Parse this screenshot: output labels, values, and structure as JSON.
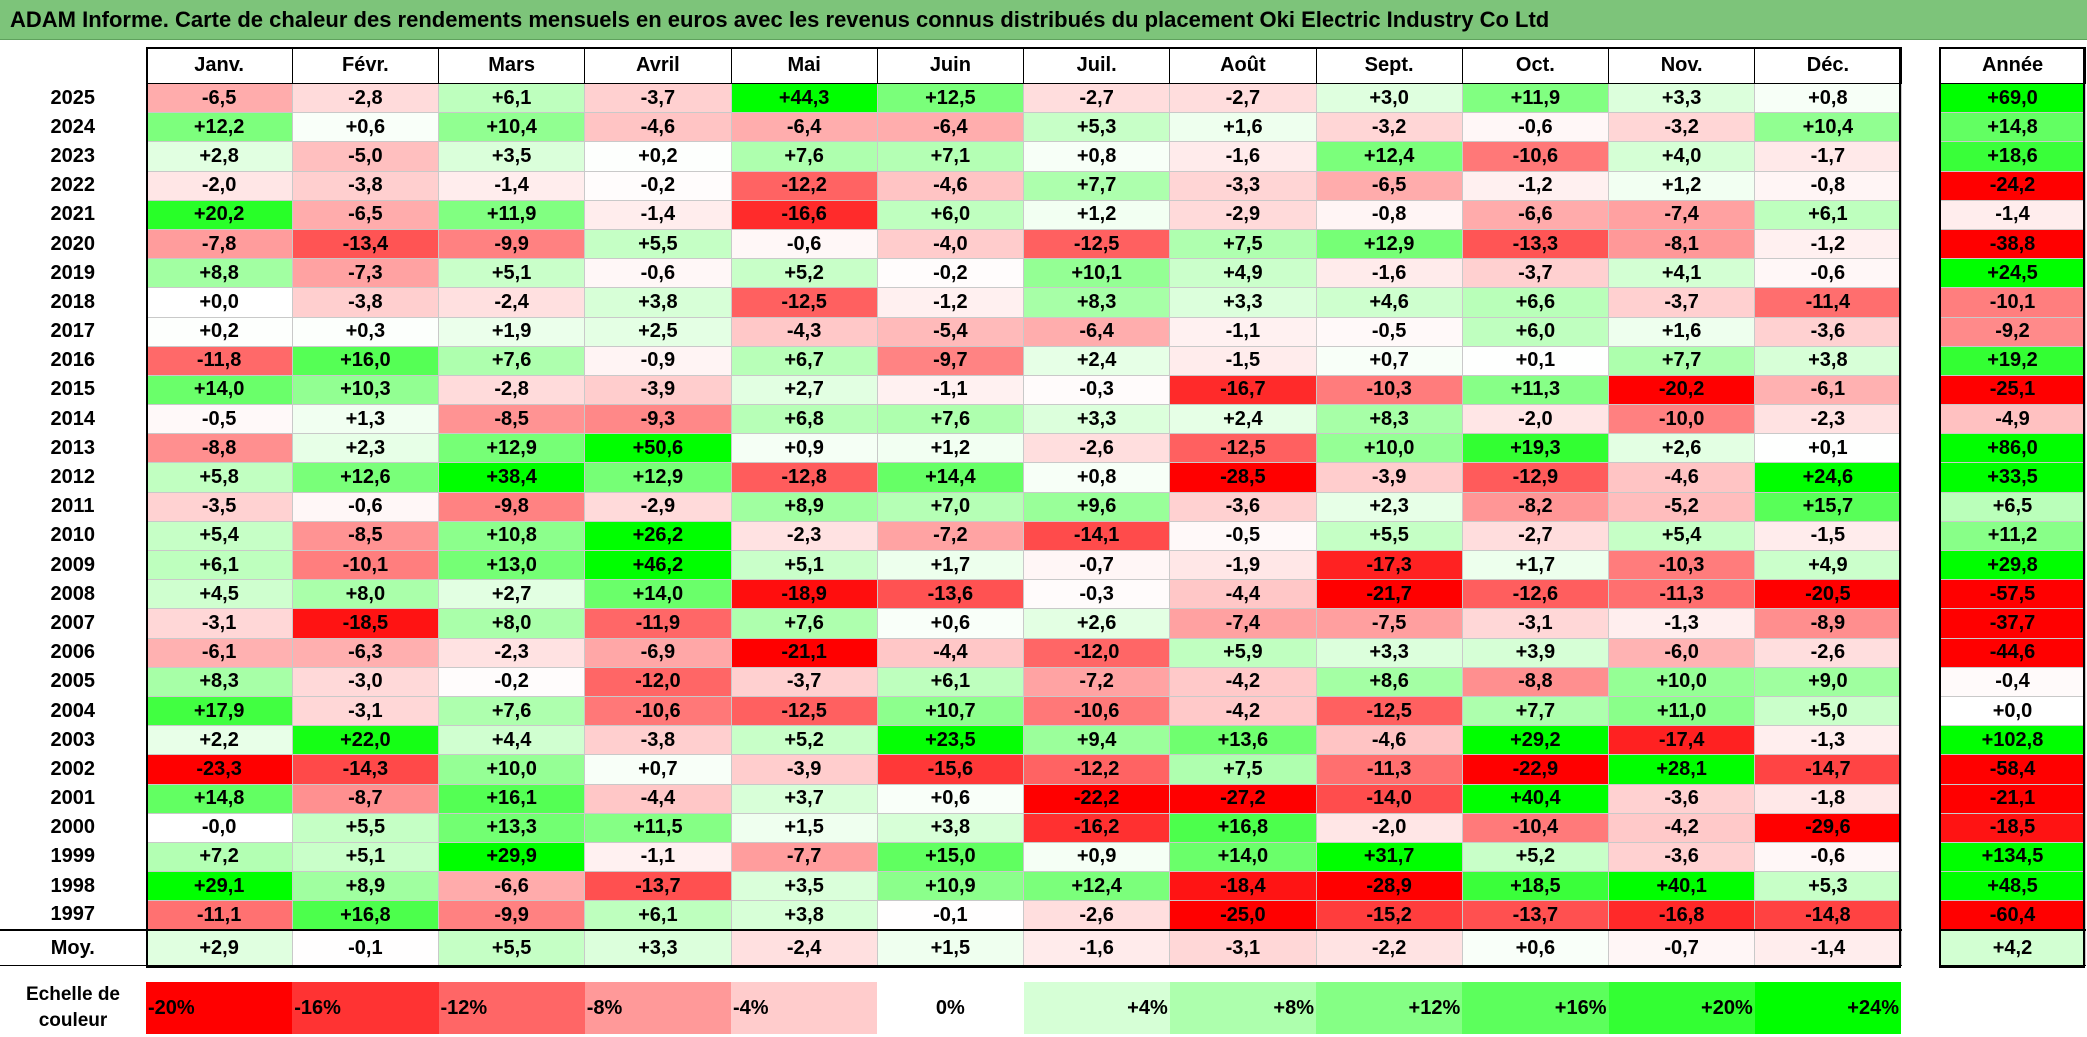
{
  "title": "ADAM Informe. Carte de chaleur des rendements mensuels en euros avec les revenus connus distribués du placement Oki Electric Industry Co Ltd",
  "chart_data": {
    "type": "heatmap",
    "title": "ADAM Informe. Carte de chaleur des rendements mensuels en euros avec les revenus connus distribués du placement Oki Electric Industry Co Ltd",
    "columns": [
      "Janv.",
      "Févr.",
      "Mars",
      "Avril",
      "Mai",
      "Juin",
      "Juil.",
      "Août",
      "Sept.",
      "Oct.",
      "Nov.",
      "Déc."
    ],
    "year_column_label": "Année",
    "rows": [
      {
        "year": "2025",
        "values": [
          "-6,5",
          "-2,8",
          "+6,1",
          "-3,7",
          "+44,3",
          "+12,5",
          "-2,7",
          "-2,7",
          "+3,0",
          "+11,9",
          "+3,3",
          "+0,8"
        ],
        "annual": "+69,0"
      },
      {
        "year": "2024",
        "values": [
          "+12,2",
          "+0,6",
          "+10,4",
          "-4,6",
          "-6,4",
          "-6,4",
          "+5,3",
          "+1,6",
          "-3,2",
          "-0,6",
          "-3,2",
          "+10,4"
        ],
        "annual": "+14,8"
      },
      {
        "year": "2023",
        "values": [
          "+2,8",
          "-5,0",
          "+3,5",
          "+0,2",
          "+7,6",
          "+7,1",
          "+0,8",
          "-1,6",
          "+12,4",
          "-10,6",
          "+4,0",
          "-1,7"
        ],
        "annual": "+18,6"
      },
      {
        "year": "2022",
        "values": [
          "-2,0",
          "-3,8",
          "-1,4",
          "-0,2",
          "-12,2",
          "-4,6",
          "+7,7",
          "-3,3",
          "-6,5",
          "-1,2",
          "+1,2",
          "-0,8"
        ],
        "annual": "-24,2"
      },
      {
        "year": "2021",
        "values": [
          "+20,2",
          "-6,5",
          "+11,9",
          "-1,4",
          "-16,6",
          "+6,0",
          "+1,2",
          "-2,9",
          "-0,8",
          "-6,6",
          "-7,4",
          "+6,1"
        ],
        "annual": "-1,4"
      },
      {
        "year": "2020",
        "values": [
          "-7,8",
          "-13,4",
          "-9,9",
          "+5,5",
          "-0,6",
          "-4,0",
          "-12,5",
          "+7,5",
          "+12,9",
          "-13,3",
          "-8,1",
          "-1,2"
        ],
        "annual": "-38,8"
      },
      {
        "year": "2019",
        "values": [
          "+8,8",
          "-7,3",
          "+5,1",
          "-0,6",
          "+5,2",
          "-0,2",
          "+10,1",
          "+4,9",
          "-1,6",
          "-3,7",
          "+4,1",
          "-0,6"
        ],
        "annual": "+24,5"
      },
      {
        "year": "2018",
        "values": [
          "+0,0",
          "-3,8",
          "-2,4",
          "+3,8",
          "-12,5",
          "-1,2",
          "+8,3",
          "+3,3",
          "+4,6",
          "+6,6",
          "-3,7",
          "-11,4"
        ],
        "annual": "-10,1"
      },
      {
        "year": "2017",
        "values": [
          "+0,2",
          "+0,3",
          "+1,9",
          "+2,5",
          "-4,3",
          "-5,4",
          "-6,4",
          "-1,1",
          "-0,5",
          "+6,0",
          "+1,6",
          "-3,6"
        ],
        "annual": "-9,2"
      },
      {
        "year": "2016",
        "values": [
          "-11,8",
          "+16,0",
          "+7,6",
          "-0,9",
          "+6,7",
          "-9,7",
          "+2,4",
          "-1,5",
          "+0,7",
          "+0,1",
          "+7,7",
          "+3,8"
        ],
        "annual": "+19,2"
      },
      {
        "year": "2015",
        "values": [
          "+14,0",
          "+10,3",
          "-2,8",
          "-3,9",
          "+2,7",
          "-1,1",
          "-0,3",
          "-16,7",
          "-10,3",
          "+11,3",
          "-20,2",
          "-6,1"
        ],
        "annual": "-25,1"
      },
      {
        "year": "2014",
        "values": [
          "-0,5",
          "+1,3",
          "-8,5",
          "-9,3",
          "+6,8",
          "+7,6",
          "+3,3",
          "+2,4",
          "+8,3",
          "-2,0",
          "-10,0",
          "-2,3"
        ],
        "annual": "-4,9"
      },
      {
        "year": "2013",
        "values": [
          "-8,8",
          "+2,3",
          "+12,9",
          "+50,6",
          "+0,9",
          "+1,2",
          "-2,6",
          "-12,5",
          "+10,0",
          "+19,3",
          "+2,6",
          "+0,1"
        ],
        "annual": "+86,0"
      },
      {
        "year": "2012",
        "values": [
          "+5,8",
          "+12,6",
          "+38,4",
          "+12,9",
          "-12,8",
          "+14,4",
          "+0,8",
          "-28,5",
          "-3,9",
          "-12,9",
          "-4,6",
          "+24,6"
        ],
        "annual": "+33,5"
      },
      {
        "year": "2011",
        "values": [
          "-3,5",
          "-0,6",
          "-9,8",
          "-2,9",
          "+8,9",
          "+7,0",
          "+9,6",
          "-3,6",
          "+2,3",
          "-8,2",
          "-5,2",
          "+15,7"
        ],
        "annual": "+6,5"
      },
      {
        "year": "2010",
        "values": [
          "+5,4",
          "-8,5",
          "+10,8",
          "+26,2",
          "-2,3",
          "-7,2",
          "-14,1",
          "-0,5",
          "+5,5",
          "-2,7",
          "+5,4",
          "-1,5"
        ],
        "annual": "+11,2"
      },
      {
        "year": "2009",
        "values": [
          "+6,1",
          "-10,1",
          "+13,0",
          "+46,2",
          "+5,1",
          "+1,7",
          "-0,7",
          "-1,9",
          "-17,3",
          "+1,7",
          "-10,3",
          "+4,9"
        ],
        "annual": "+29,8"
      },
      {
        "year": "2008",
        "values": [
          "+4,5",
          "+8,0",
          "+2,7",
          "+14,0",
          "-18,9",
          "-13,6",
          "-0,3",
          "-4,4",
          "-21,7",
          "-12,6",
          "-11,3",
          "-20,5"
        ],
        "annual": "-57,5"
      },
      {
        "year": "2007",
        "values": [
          "-3,1",
          "-18,5",
          "+8,0",
          "-11,9",
          "+7,6",
          "+0,6",
          "+2,6",
          "-7,4",
          "-7,5",
          "-3,1",
          "-1,3",
          "-8,9"
        ],
        "annual": "-37,7"
      },
      {
        "year": "2006",
        "values": [
          "-6,1",
          "-6,3",
          "-2,3",
          "-6,9",
          "-21,1",
          "-4,4",
          "-12,0",
          "+5,9",
          "+3,3",
          "+3,9",
          "-6,0",
          "-2,6"
        ],
        "annual": "-44,6"
      },
      {
        "year": "2005",
        "values": [
          "+8,3",
          "-3,0",
          "-0,2",
          "-12,0",
          "-3,7",
          "+6,1",
          "-7,2",
          "-4,2",
          "+8,6",
          "-8,8",
          "+10,0",
          "+9,0"
        ],
        "annual": "-0,4"
      },
      {
        "year": "2004",
        "values": [
          "+17,9",
          "-3,1",
          "+7,6",
          "-10,6",
          "-12,5",
          "+10,7",
          "-10,6",
          "-4,2",
          "-12,5",
          "+7,7",
          "+11,0",
          "+5,0"
        ],
        "annual": "+0,0"
      },
      {
        "year": "2003",
        "values": [
          "+2,2",
          "+22,0",
          "+4,4",
          "-3,8",
          "+5,2",
          "+23,5",
          "+9,4",
          "+13,6",
          "-4,6",
          "+29,2",
          "-17,4",
          "-1,3"
        ],
        "annual": "+102,8"
      },
      {
        "year": "2002",
        "values": [
          "-23,3",
          "-14,3",
          "+10,0",
          "+0,7",
          "-3,9",
          "-15,6",
          "-12,2",
          "+7,5",
          "-11,3",
          "-22,9",
          "+28,1",
          "-14,7"
        ],
        "annual": "-58,4"
      },
      {
        "year": "2001",
        "values": [
          "+14,8",
          "-8,7",
          "+16,1",
          "-4,4",
          "+3,7",
          "+0,6",
          "-22,2",
          "-27,2",
          "-14,0",
          "+40,4",
          "-3,6",
          "-1,8"
        ],
        "annual": "-21,1"
      },
      {
        "year": "2000",
        "values": [
          "-0,0",
          "+5,5",
          "+13,3",
          "+11,5",
          "+1,5",
          "+3,8",
          "-16,2",
          "+16,8",
          "-2,0",
          "-10,4",
          "-4,2",
          "-29,6"
        ],
        "annual": "-18,5"
      },
      {
        "year": "1999",
        "values": [
          "+7,2",
          "+5,1",
          "+29,9",
          "-1,1",
          "-7,7",
          "+15,0",
          "+0,9",
          "+14,0",
          "+31,7",
          "+5,2",
          "-3,6",
          "-0,6"
        ],
        "annual": "+134,5"
      },
      {
        "year": "1998",
        "values": [
          "+29,1",
          "+8,9",
          "-6,6",
          "-13,7",
          "+3,5",
          "+10,9",
          "+12,4",
          "-18,4",
          "-28,9",
          "+18,5",
          "+40,1",
          "+5,3"
        ],
        "annual": "+48,5"
      },
      {
        "year": "1997",
        "values": [
          "-11,1",
          "+16,8",
          "-9,9",
          "+6,1",
          "+3,8",
          "-0,1",
          "-2,6",
          "-25,0",
          "-15,2",
          "-13,7",
          "-16,8",
          "-14,8"
        ],
        "annual": "-60,4"
      }
    ],
    "average": {
      "label": "Moy.",
      "values": [
        "+2,9",
        "-0,1",
        "+5,5",
        "+3,3",
        "-2,4",
        "+1,5",
        "-1,6",
        "-3,1",
        "-2,2",
        "+0,6",
        "-0,7",
        "-1,4"
      ],
      "annual": "+4,2"
    },
    "scale": {
      "label": "Echelle de couleur",
      "stops": [
        {
          "label": "-20%",
          "color": "#ff0000"
        },
        {
          "label": "-16%",
          "color": "#ff3333"
        },
        {
          "label": "-12%",
          "color": "#ff6666"
        },
        {
          "label": "-8%",
          "color": "#ff9999"
        },
        {
          "label": "-4%",
          "color": "#ffcccc"
        },
        {
          "label": "0%",
          "color": "#ffffff"
        },
        {
          "label": "+4%",
          "color": "#d6ffd6"
        },
        {
          "label": "+8%",
          "color": "#adffad"
        },
        {
          "label": "+12%",
          "color": "#85ff85"
        },
        {
          "label": "+16%",
          "color": "#5cff5c"
        },
        {
          "label": "+20%",
          "color": "#33ff33"
        },
        {
          "label": "+24%",
          "color": "#00ff00"
        }
      ]
    }
  }
}
